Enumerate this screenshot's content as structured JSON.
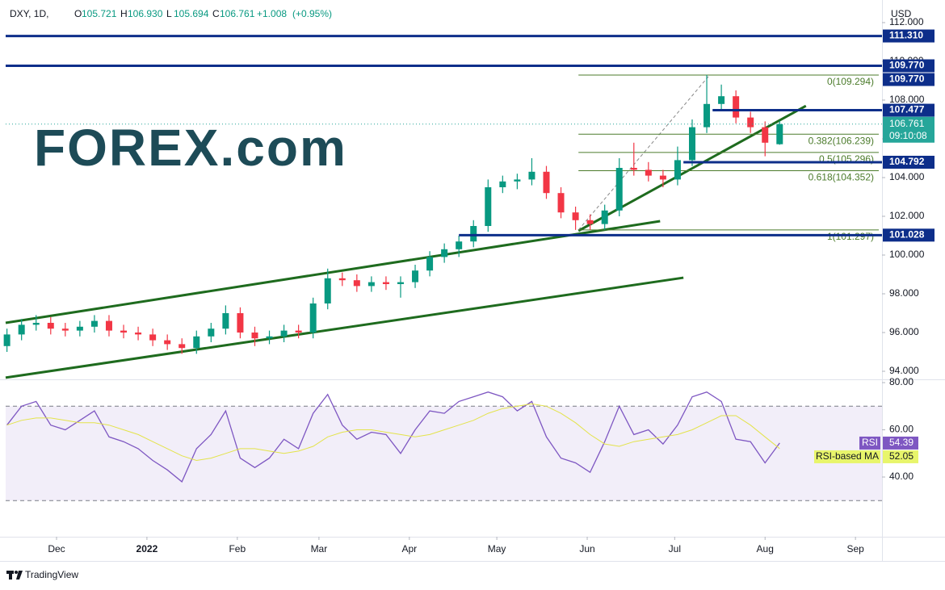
{
  "logo": "FOREX.com",
  "footer": "TradingView",
  "chart_data": [
    {
      "type": "candlestick",
      "symbol": "DXY, 1D,",
      "ohlc_labels": [
        "O",
        "H",
        "L",
        "C"
      ],
      "last_bar_labels": [
        "105.721",
        "106.930",
        "105.694",
        "106.761"
      ],
      "change": "+1.008",
      "change_pct": "(+0.95%)",
      "currency": "USD",
      "countdown": "09:10:08",
      "x": [
        -17,
        -12,
        -7,
        -2,
        3,
        8,
        13,
        18,
        23,
        28,
        33,
        38,
        43,
        48,
        53,
        58,
        63,
        68,
        73,
        78,
        83,
        88,
        93,
        98,
        103,
        108,
        113,
        118,
        123,
        128,
        133,
        138,
        143,
        148,
        153,
        158,
        163,
        168,
        173,
        178,
        183,
        188,
        193,
        198,
        203,
        208,
        213,
        218,
        223,
        228,
        233,
        238,
        243,
        248
      ],
      "open": [
        95.3,
        95.9,
        96.4,
        96.5,
        96.2,
        96.1,
        96.3,
        96.6,
        96.1,
        96.0,
        95.9,
        95.6,
        95.4,
        95.2,
        95.8,
        96.2,
        97.0,
        96.0,
        95.7,
        95.8,
        96.1,
        96.0,
        97.5,
        98.8,
        98.7,
        98.4,
        98.6,
        98.5,
        98.6,
        99.2,
        99.9,
        100.3,
        100.7,
        101.5,
        103.5,
        103.8,
        103.9,
        104.3,
        103.2,
        102.2,
        101.8,
        101.6,
        102.3,
        104.5,
        104.4,
        104.1,
        103.9,
        104.9,
        106.6,
        107.8,
        108.2,
        107.1,
        106.6,
        105.721
      ],
      "high": [
        96.2,
        96.7,
        96.9,
        96.8,
        96.5,
        96.6,
        96.9,
        96.9,
        96.4,
        96.3,
        96.2,
        95.9,
        95.7,
        96.1,
        96.5,
        97.4,
        97.3,
        96.3,
        96.1,
        96.4,
        96.4,
        97.8,
        99.3,
        99.1,
        99.0,
        98.9,
        98.9,
        98.9,
        99.5,
        100.2,
        100.6,
        101.0,
        101.8,
        103.9,
        104.1,
        104.2,
        105.0,
        104.6,
        103.5,
        102.5,
        102.1,
        102.6,
        105.0,
        105.8,
        104.8,
        104.4,
        105.6,
        107.0,
        109.294,
        108.8,
        108.5,
        107.4,
        106.9,
        106.93
      ],
      "low": [
        95.0,
        95.6,
        96.1,
        95.9,
        95.8,
        95.8,
        96.0,
        95.8,
        95.7,
        95.6,
        95.3,
        95.1,
        94.9,
        94.9,
        95.5,
        95.9,
        95.7,
        95.3,
        95.4,
        95.5,
        95.7,
        95.7,
        97.2,
        98.4,
        98.1,
        98.1,
        98.2,
        97.8,
        98.3,
        98.9,
        99.6,
        99.9,
        100.4,
        101.2,
        103.2,
        103.4,
        103.6,
        102.9,
        101.9,
        101.297,
        101.3,
        101.3,
        102.0,
        104.1,
        103.8,
        103.5,
        103.6,
        104.6,
        106.3,
        107.5,
        106.8,
        106.3,
        105.1,
        105.694
      ],
      "close": [
        95.9,
        96.4,
        96.5,
        96.2,
        96.1,
        96.3,
        96.6,
        96.1,
        96.0,
        95.9,
        95.6,
        95.4,
        95.2,
        95.8,
        96.2,
        97.0,
        96.0,
        95.7,
        95.8,
        96.1,
        96.0,
        97.5,
        98.8,
        98.7,
        98.4,
        98.6,
        98.5,
        98.6,
        99.2,
        99.9,
        100.3,
        100.7,
        101.5,
        103.5,
        103.8,
        103.9,
        104.3,
        103.2,
        102.2,
        101.8,
        101.6,
        102.3,
        104.5,
        104.4,
        104.1,
        103.9,
        104.9,
        106.6,
        107.8,
        108.2,
        107.1,
        106.6,
        105.8,
        106.761
      ],
      "up_color": "#089981",
      "down_color": "#f23645",
      "last_price_color": "#26a69a",
      "xlim": [
        -17.45,
        283.1
      ],
      "xticks": [
        {
          "value": 0,
          "label": "Dec"
        },
        {
          "value": 31,
          "label": "2022"
        },
        {
          "value": 62,
          "label": "Feb"
        },
        {
          "value": 90,
          "label": "Mar"
        },
        {
          "value": 121,
          "label": "Apr"
        },
        {
          "value": 151,
          "label": "May"
        },
        {
          "value": 182,
          "label": "Jun"
        },
        {
          "value": 212,
          "label": "Jul"
        },
        {
          "value": 243,
          "label": "Aug"
        },
        {
          "value": 274,
          "label": "Sep"
        }
      ],
      "ylim": [
        93.583,
        113.167
      ],
      "yticks": [
        {
          "value": 94,
          "label": "94.000"
        },
        {
          "value": 96,
          "label": "96.000"
        },
        {
          "value": 98,
          "label": "98.000"
        },
        {
          "value": 100,
          "label": "100.000"
        },
        {
          "value": 102,
          "label": "102.000"
        },
        {
          "value": 104,
          "label": "104.000"
        },
        {
          "value": 106,
          "label": "106.000"
        },
        {
          "value": 108,
          "label": "108.000"
        },
        {
          "value": 110,
          "label": "110.000"
        },
        {
          "value": 112,
          "label": "112.000"
        }
      ],
      "levels": {
        "values": [
          111.31,
          109.77,
          109.77,
          107.477,
          104.792,
          101.028
        ],
        "value_labels": [
          "111.310",
          "109.770",
          "109.770",
          "107.477",
          "104.792",
          "101.028"
        ],
        "start": [
          -17.45,
          -17.45,
          -17.45,
          225,
          215,
          138
        ],
        "color": "#0d2e8a"
      },
      "fib": {
        "prices": [
          109.294,
          106.239,
          105.296,
          104.352,
          101.297
        ],
        "labels": [
          "0(109.294)",
          "0.382(106.239)",
          "0.5(105.296)",
          "0.618(104.352)",
          "1(101.297)"
        ],
        "start": 179,
        "color": "#4b7b2b",
        "diagonal": [
          179,
          101.297,
          224,
          109.294
        ]
      },
      "trendlines": {
        "color": "#1e6b1e",
        "lines": [
          [
            -17.45,
            96.5,
            207,
            101.75
          ],
          [
            -17.45,
            93.67,
            215,
            98.83
          ],
          [
            179,
            101.25,
            257,
            107.7
          ]
        ]
      }
    },
    {
      "type": "line",
      "x": [
        -17,
        -12,
        -7,
        -2,
        3,
        8,
        13,
        18,
        23,
        28,
        33,
        38,
        43,
        48,
        53,
        58,
        63,
        68,
        73,
        78,
        83,
        88,
        93,
        98,
        103,
        108,
        113,
        118,
        123,
        128,
        133,
        138,
        143,
        148,
        153,
        158,
        163,
        168,
        173,
        178,
        183,
        188,
        193,
        198,
        203,
        208,
        213,
        218,
        223,
        228,
        233,
        238,
        243,
        248
      ],
      "series": [
        {
          "name": "RSI",
          "color": "#7e57c2",
          "label_color": "#7e57c2",
          "values": [
            62,
            70,
            72,
            62,
            60,
            64,
            68,
            57,
            55,
            52,
            47,
            43,
            38,
            52,
            58,
            68,
            48,
            44,
            48,
            56,
            52,
            67,
            75,
            62,
            56,
            59,
            58,
            50,
            60,
            68,
            67,
            72,
            74,
            76,
            74,
            68,
            72,
            57,
            48,
            46,
            42,
            55,
            70,
            58,
            60,
            54,
            62,
            74,
            76,
            72,
            56,
            55,
            46,
            54.39
          ]
        },
        {
          "name": "RSI-based MA",
          "color": "#e3e34a",
          "label_color": "#e8f56b",
          "values": [
            62,
            64,
            65,
            65,
            64,
            63,
            63,
            62,
            60,
            58,
            55,
            52,
            49,
            47,
            48,
            50,
            52,
            52,
            51,
            50,
            51,
            53,
            57,
            59,
            60,
            60,
            59,
            58,
            57,
            58,
            60,
            62,
            64,
            67,
            69,
            70,
            71,
            70,
            67,
            63,
            58,
            54,
            53,
            55,
            56,
            57,
            58,
            60,
            63,
            66,
            66,
            62,
            57,
            52.05
          ]
        }
      ],
      "xlim": [
        -17.45,
        283.1
      ],
      "ylim": [
        14.7,
        80.7
      ],
      "yticks": [
        {
          "value": 40,
          "label": "40.00"
        },
        {
          "value": 60,
          "label": "60.00"
        },
        {
          "value": 80,
          "label": "80.00"
        }
      ],
      "bands": [
        70,
        30
      ],
      "band_fill": "#7e57c2"
    }
  ]
}
